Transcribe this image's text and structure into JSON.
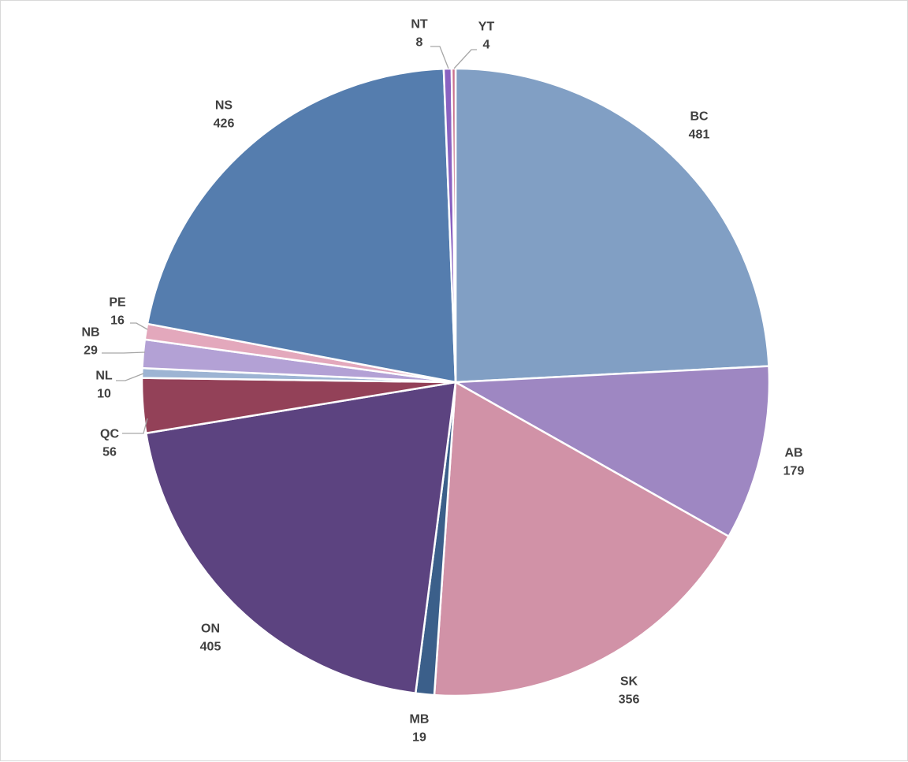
{
  "chart_data": {
    "type": "pie",
    "title": "",
    "legend": "none",
    "show_data_labels": true,
    "start_angle_degrees": 0,
    "direction": "clockwise",
    "slices": [
      {
        "label": "BC",
        "value": 481,
        "color": "#819FC4"
      },
      {
        "label": "AB",
        "value": 179,
        "color": "#9E87C2"
      },
      {
        "label": "SK",
        "value": 356,
        "color": "#D192A7"
      },
      {
        "label": "MB",
        "value": 19,
        "color": "#3B5F8A"
      },
      {
        "label": "ON",
        "value": 405,
        "color": "#5C4380"
      },
      {
        "label": "QC",
        "value": 56,
        "color": "#934158"
      },
      {
        "label": "NL",
        "value": 10,
        "color": "#9DB4D3"
      },
      {
        "label": "NB",
        "value": 29,
        "color": "#B3A1D5"
      },
      {
        "label": "PE",
        "value": 16,
        "color": "#E3A8BC"
      },
      {
        "label": "NS",
        "value": 426,
        "color": "#557DAE"
      },
      {
        "label": "NT",
        "value": 8,
        "color": "#8A62C1"
      },
      {
        "label": "YT",
        "value": 4,
        "color": "#C9728F"
      }
    ]
  }
}
